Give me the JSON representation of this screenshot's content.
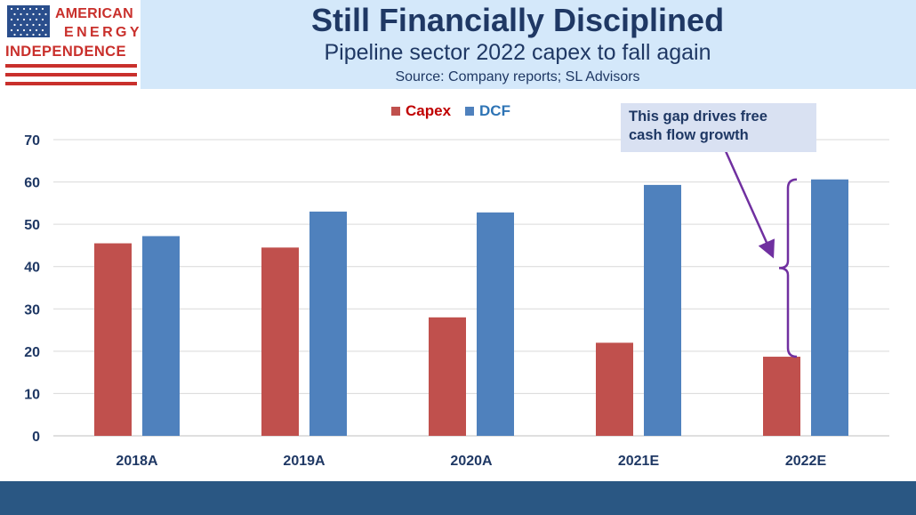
{
  "header": {
    "logo_line1": "AMERICAN",
    "logo_line2": "ENERGY",
    "logo_line3": "INDEPENDENCE",
    "title": "Still Financially Disciplined",
    "subtitle": "Pipeline sector 2022 capex to fall again",
    "source": "Source: Company reports; SL Advisors"
  },
  "annotation": {
    "line1": "This gap drives free",
    "line2": "cash flow growth"
  },
  "colors": {
    "capex": "#c0504d",
    "dcf": "#4f81bd",
    "title": "#1f3864",
    "arrow": "#7030a0"
  },
  "chart_data": {
    "type": "bar",
    "categories": [
      "2018A",
      "2019A",
      "2020A",
      "2021E",
      "2022E"
    ],
    "series": [
      {
        "name": "Capex",
        "values": [
          45.5,
          44.5,
          28,
          22,
          18.7
        ]
      },
      {
        "name": "DCF",
        "values": [
          47.2,
          53,
          52.8,
          59.3,
          60.6
        ]
      }
    ],
    "ylim": [
      0,
      70
    ],
    "yticks": [
      0,
      10,
      20,
      30,
      40,
      50,
      60,
      70
    ],
    "grid": true,
    "legend": "top-center"
  }
}
